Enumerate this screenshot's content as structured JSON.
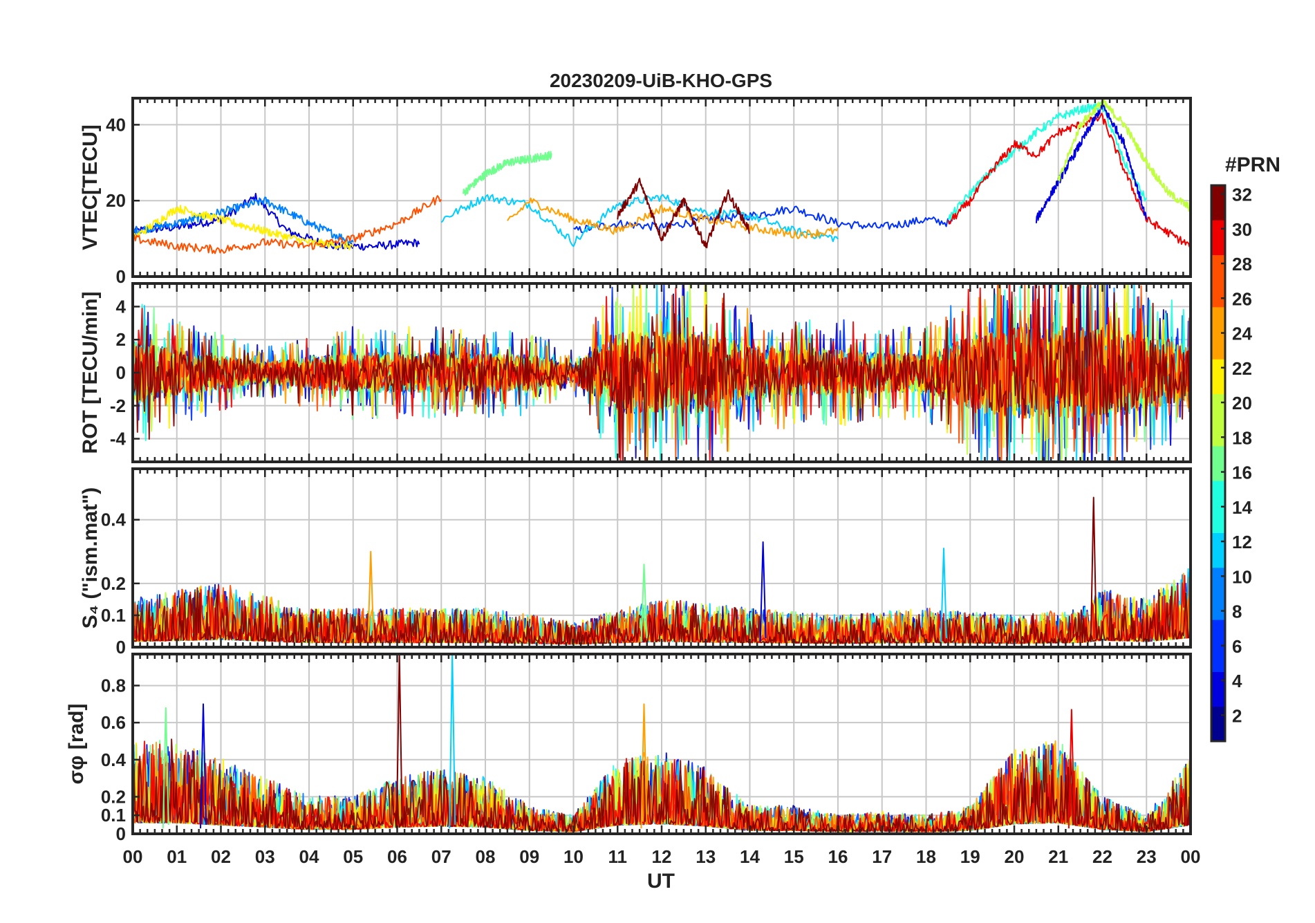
{
  "chart_data": {
    "type": "line",
    "title": "20230209-UiB-KHO-GPS",
    "xlabel": "UT",
    "x_ticks": [
      "00",
      "01",
      "02",
      "03",
      "04",
      "05",
      "06",
      "07",
      "08",
      "09",
      "10",
      "11",
      "12",
      "13",
      "14",
      "15",
      "16",
      "17",
      "18",
      "19",
      "20",
      "21",
      "22",
      "23",
      "00"
    ],
    "xlim_hours": [
      0,
      24
    ],
    "grid": true,
    "colorbar": {
      "label": "#PRN",
      "range": [
        1,
        32
      ],
      "ticks": [
        "2",
        "4",
        "6",
        "8",
        "10",
        "12",
        "14",
        "16",
        "18",
        "20",
        "22",
        "24",
        "26",
        "28",
        "30",
        "32"
      ],
      "colormap": "jet",
      "colors": [
        "#00008f",
        "#0000df",
        "#0030ff",
        "#0080ff",
        "#00cfff",
        "#20ffdf",
        "#70ff8f",
        "#bfff40",
        "#ffef00",
        "#ff9f00",
        "#ff5000",
        "#ef0000",
        "#800000"
      ]
    },
    "panels": [
      {
        "ylabel": "VTEC[TECU]",
        "ylim": [
          0,
          47
        ],
        "yticks": [
          0,
          20,
          40
        ],
        "ytick_labels": [
          "0",
          "20",
          "40"
        ],
        "series": [
          {
            "prn": 2,
            "color": "#0000df",
            "x": [
              0,
              1,
              2,
              2.8,
              3.5,
              4.5,
              5.5,
              6.5
            ],
            "y": [
              12,
              13,
              15,
              21,
              12,
              8,
              8,
              9
            ]
          },
          {
            "prn": 6,
            "color": "#0030ff",
            "x": [
              10,
              11,
              12,
              13,
              14,
              15,
              16,
              17,
              18,
              18.6
            ],
            "y": [
              12,
              14,
              13,
              15,
              16,
              18,
              14,
              13,
              15,
              14
            ]
          },
          {
            "prn": 9,
            "color": "#0080ff",
            "x": [
              0,
              1,
              2,
              3,
              4,
              5
            ],
            "y": [
              12,
              14,
              17,
              20,
              14,
              9
            ]
          },
          {
            "prn": 13,
            "color": "#00cfff",
            "x": [
              7,
              8,
              9,
              10,
              11,
              12,
              13,
              14,
              15,
              16
            ],
            "y": [
              15,
              21,
              19,
              9,
              19,
              21,
              17,
              16,
              12,
              10
            ]
          },
          {
            "prn": 18,
            "color": "#70ff8f",
            "x": [
              7.5,
              8,
              8.5,
              9,
              9.5
            ],
            "y": [
              22,
              27,
              30,
              31,
              32
            ]
          },
          {
            "prn": 20,
            "color": "#ffef00",
            "x": [
              0,
              0.5,
              1,
              2,
              3,
              4,
              5
            ],
            "y": [
              10,
              14,
              18,
              15,
              12,
              9,
              8
            ]
          },
          {
            "prn": 23,
            "color": "#ff9f00",
            "x": [
              8.5,
              9,
              10,
              11,
              12,
              13,
              14,
              15,
              16
            ],
            "y": [
              14,
              20,
              15,
              12,
              18,
              15,
              13,
              11,
              12
            ]
          },
          {
            "prn": 26,
            "color": "#ff5000",
            "x": [
              0,
              1,
              2,
              3,
              4,
              5,
              6,
              7
            ],
            "y": [
              10,
              8,
              7,
              9,
              8,
              10,
              14,
              21
            ]
          },
          {
            "prn": 31,
            "color": "#800000",
            "x": [
              11,
              11.5,
              12,
              12.5,
              13,
              13.5,
              14
            ],
            "y": [
              16,
              25,
              10,
              20,
              8,
              22,
              12
            ]
          },
          {
            "prn": 15,
            "color": "#20ffdf",
            "x": [
              18.5,
              19,
              19.5,
              20,
              20.5,
              21,
              21.5,
              22,
              22.5,
              23
            ],
            "y": [
              15,
              22,
              28,
              33,
              38,
              42,
              44,
              45,
              30,
              20
            ]
          },
          {
            "prn": 29,
            "color": "#ef0000",
            "x": [
              18.5,
              19,
              19.5,
              20,
              20.5,
              21,
              21.5,
              22,
              22.5,
              23,
              24
            ],
            "y": [
              14,
              20,
              28,
              35,
              32,
              38,
              40,
              42,
              28,
              15,
              8
            ]
          },
          {
            "prn": 4,
            "color": "#0000df",
            "x": [
              20.5,
              21,
              21.5,
              22,
              22.5,
              23
            ],
            "y": [
              15,
              25,
              35,
              45,
              35,
              15
            ]
          },
          {
            "prn": 19,
            "color": "#bfff40",
            "x": [
              21,
              21.5,
              22,
              22.5,
              23,
              23.5,
              24
            ],
            "y": [
              25,
              40,
              46,
              40,
              30,
              22,
              18
            ]
          }
        ]
      },
      {
        "ylabel": "ROT [TECU/min]",
        "ylim": [
          -5.4,
          5.4
        ],
        "yticks": [
          -4,
          -2,
          0,
          2,
          4
        ],
        "ytick_labels": [
          "-4",
          "-2",
          "0",
          "2",
          "4"
        ],
        "noise_envelope": {
          "x": [
            0,
            1,
            3,
            5,
            7,
            9,
            10,
            11,
            12,
            13,
            14,
            15,
            16,
            17,
            18,
            19,
            20,
            21,
            22,
            23,
            24
          ],
          "amp": [
            3.5,
            2.5,
            1.2,
            2.2,
            2.2,
            2,
            1,
            4.5,
            4.5,
            4.5,
            3,
            2.5,
            2.5,
            2.2,
            2.2,
            4,
            5,
            5,
            5,
            4,
            3
          ]
        }
      },
      {
        "ylabel": "S₄ (\"ism.mat\")",
        "ylim": [
          0,
          0.56
        ],
        "yticks": [
          0,
          0.1,
          0.2,
          0.4
        ],
        "ytick_labels": [
          "0",
          "0.1",
          "0.2",
          "0.4"
        ],
        "noise_envelope": {
          "x": [
            0,
            2,
            4,
            6,
            8,
            10,
            12,
            14,
            16,
            18,
            20,
            21.5,
            22,
            23,
            24
          ],
          "amp": [
            0.15,
            0.2,
            0.12,
            0.12,
            0.12,
            0.08,
            0.15,
            0.12,
            0.1,
            0.12,
            0.1,
            0.12,
            0.18,
            0.15,
            0.25
          ]
        },
        "peaks": [
          {
            "x": 21.8,
            "y": 0.47
          },
          {
            "x": 18.4,
            "y": 0.31
          },
          {
            "x": 5.4,
            "y": 0.3
          },
          {
            "x": 14.3,
            "y": 0.33
          },
          {
            "x": 11.6,
            "y": 0.26
          }
        ]
      },
      {
        "ylabel": "σφ [rad]",
        "ylim": [
          0,
          0.97
        ],
        "yticks": [
          0,
          0.1,
          0.2,
          0.4,
          0.6,
          0.8
        ],
        "ytick_labels": [
          "0",
          "0.1",
          "0.2",
          "0.4",
          "0.6",
          "0.8"
        ],
        "noise_envelope": {
          "x": [
            0,
            1,
            2,
            3,
            4,
            5,
            6,
            7,
            8,
            9,
            10,
            11,
            12,
            13,
            14,
            15,
            16,
            17,
            18,
            19,
            20,
            21,
            22,
            23,
            24
          ],
          "amp": [
            0.5,
            0.5,
            0.4,
            0.3,
            0.2,
            0.2,
            0.3,
            0.35,
            0.3,
            0.15,
            0.1,
            0.4,
            0.45,
            0.35,
            0.15,
            0.15,
            0.1,
            0.12,
            0.1,
            0.15,
            0.45,
            0.5,
            0.2,
            0.1,
            0.4
          ]
        },
        "peaks": [
          {
            "x": 6.05,
            "y": 0.97
          },
          {
            "x": 7.25,
            "y": 0.97
          },
          {
            "x": 11.6,
            "y": 0.7
          },
          {
            "x": 1.6,
            "y": 0.7
          },
          {
            "x": 0.75,
            "y": 0.68
          },
          {
            "x": 21.3,
            "y": 0.67
          }
        ]
      }
    ]
  }
}
